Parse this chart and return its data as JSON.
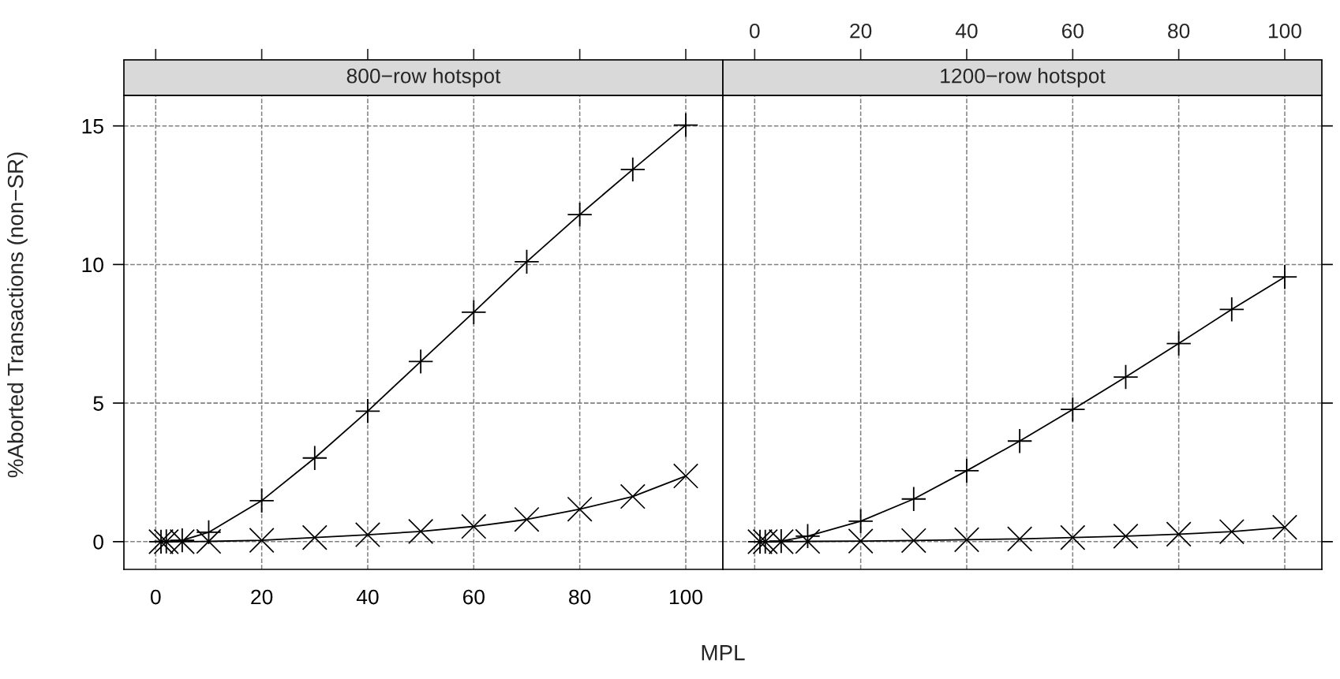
{
  "chart_data": [
    {
      "type": "line",
      "title": "800−row hotspot",
      "xlabel": "MPL",
      "ylabel": "%Aborted Transactions (non−SR)",
      "xlim": [
        -6,
        107
      ],
      "xticks": [
        0,
        20,
        40,
        60,
        80,
        100
      ],
      "ylim": [
        -1,
        16.1
      ],
      "yticks": [
        0,
        5,
        10,
        15
      ],
      "grid": true,
      "x": [
        1,
        2,
        5,
        10,
        20,
        30,
        40,
        50,
        60,
        70,
        80,
        90,
        100
      ],
      "series": [
        {
          "color": "#000000",
          "marker": "plus",
          "values": [
            0,
            0.01,
            0.05,
            0.34,
            1.48,
            3.02,
            4.71,
            6.5,
            8.28,
            10.1,
            11.8,
            13.43,
            15.03
          ]
        },
        {
          "color": "#000000",
          "marker": "cross",
          "values": [
            0,
            0,
            0,
            0.01,
            0.05,
            0.15,
            0.25,
            0.37,
            0.55,
            0.8,
            1.17,
            1.63,
            2.37
          ]
        }
      ]
    },
    {
      "type": "line",
      "title": "1200−row hotspot",
      "xlim": [
        -6,
        107
      ],
      "xticks": [
        0,
        20,
        40,
        60,
        80,
        100
      ],
      "ylim": [
        -1,
        16.1
      ],
      "yticks": [
        0,
        5,
        10,
        15
      ],
      "tick_labels": "x",
      "grid": true,
      "x": [
        1,
        2,
        5,
        10,
        20,
        30,
        40,
        50,
        60,
        70,
        80,
        90,
        100
      ],
      "series": [
        {
          "color": "#000000",
          "marker": "plus",
          "values": [
            0,
            0,
            0.02,
            0.2,
            0.74,
            1.54,
            2.56,
            3.63,
            4.77,
            5.94,
            7.15,
            8.38,
            9.55
          ]
        },
        {
          "color": "#000000",
          "marker": "cross",
          "values": [
            0,
            0,
            0,
            0.01,
            0.02,
            0.04,
            0.07,
            0.1,
            0.15,
            0.2,
            0.27,
            0.36,
            0.52
          ]
        }
      ]
    }
  ]
}
